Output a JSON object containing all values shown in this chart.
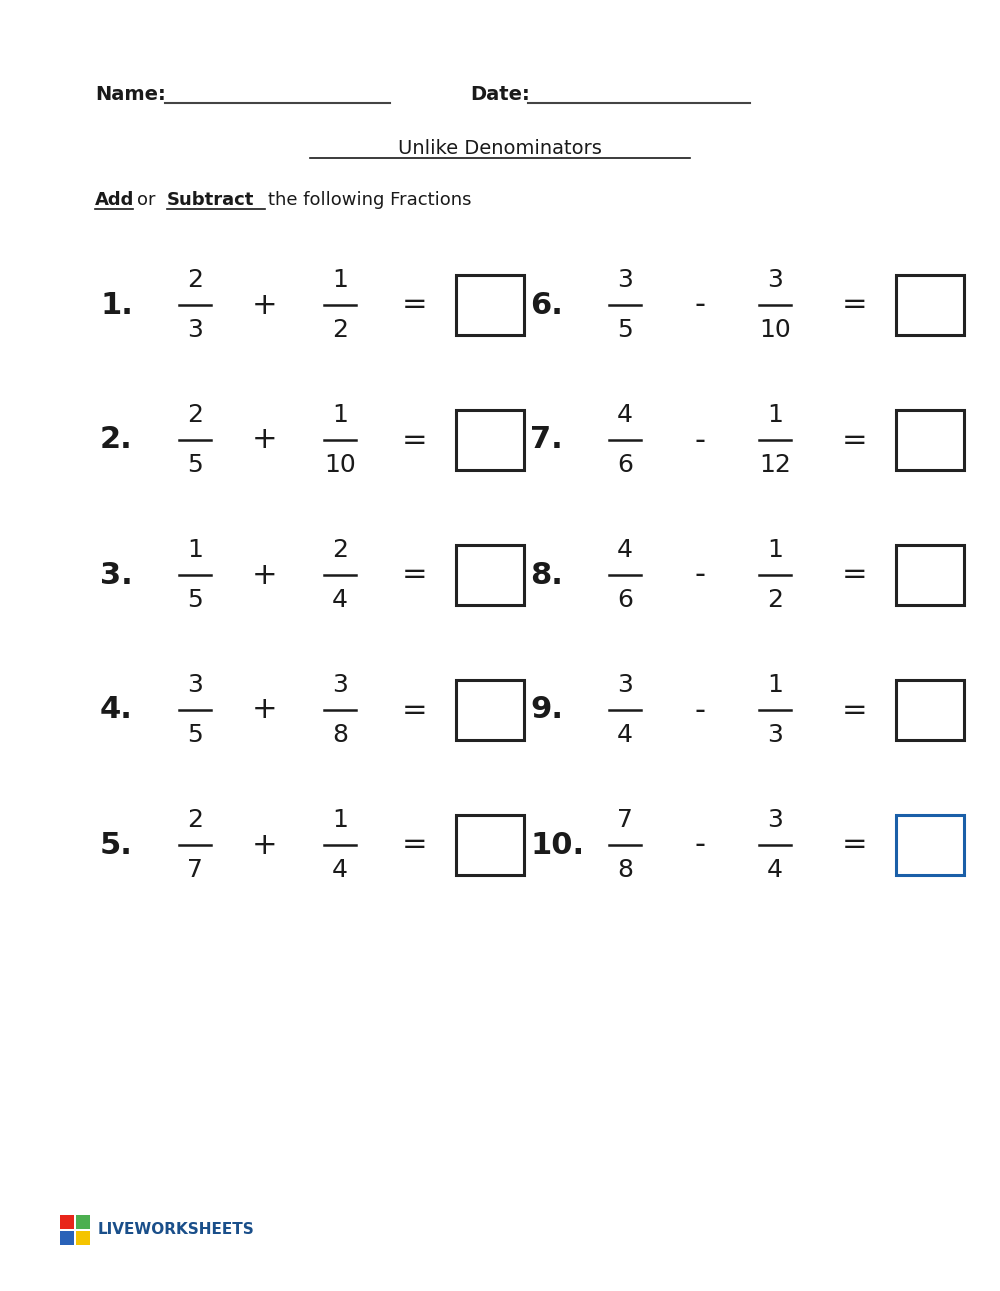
{
  "title": "Unlike Denominators",
  "name_label": "Name:",
  "date_label": "Date:",
  "problems": [
    {
      "num": "1.",
      "n1": "2",
      "d1": "3",
      "op": "+",
      "n2": "1",
      "d2": "2",
      "box_color": "#222222"
    },
    {
      "num": "2.",
      "n1": "2",
      "d1": "5",
      "op": "+",
      "n2": "1",
      "d2": "10",
      "box_color": "#222222"
    },
    {
      "num": "3.",
      "n1": "1",
      "d1": "5",
      "op": "+",
      "n2": "2",
      "d2": "4",
      "box_color": "#222222"
    },
    {
      "num": "4.",
      "n1": "3",
      "d1": "5",
      "op": "+",
      "n2": "3",
      "d2": "8",
      "box_color": "#222222"
    },
    {
      "num": "5.",
      "n1": "2",
      "d1": "7",
      "op": "+",
      "n2": "1",
      "d2": "4",
      "box_color": "#222222"
    },
    {
      "num": "6.",
      "n1": "3",
      "d1": "5",
      "op": "-",
      "n2": "3",
      "d2": "10",
      "box_color": "#222222"
    },
    {
      "num": "7.",
      "n1": "4",
      "d1": "6",
      "op": "-",
      "n2": "1",
      "d2": "12",
      "box_color": "#222222"
    },
    {
      "num": "8.",
      "n1": "4",
      "d1": "6",
      "op": "-",
      "n2": "1",
      "d2": "2",
      "box_color": "#222222"
    },
    {
      "num": "9.",
      "n1": "3",
      "d1": "4",
      "op": "-",
      "n2": "1",
      "d2": "3",
      "box_color": "#222222"
    },
    {
      "num": "10.",
      "n1": "7",
      "d1": "8",
      "op": "-",
      "n2": "3",
      "d2": "4",
      "box_color": "#1a5fa8"
    }
  ],
  "bg_color": "#ffffff",
  "text_color": "#1a1a1a",
  "logo_colors": [
    "#e8251a",
    "#4caf50",
    "#2962b8",
    "#f5c400"
  ]
}
